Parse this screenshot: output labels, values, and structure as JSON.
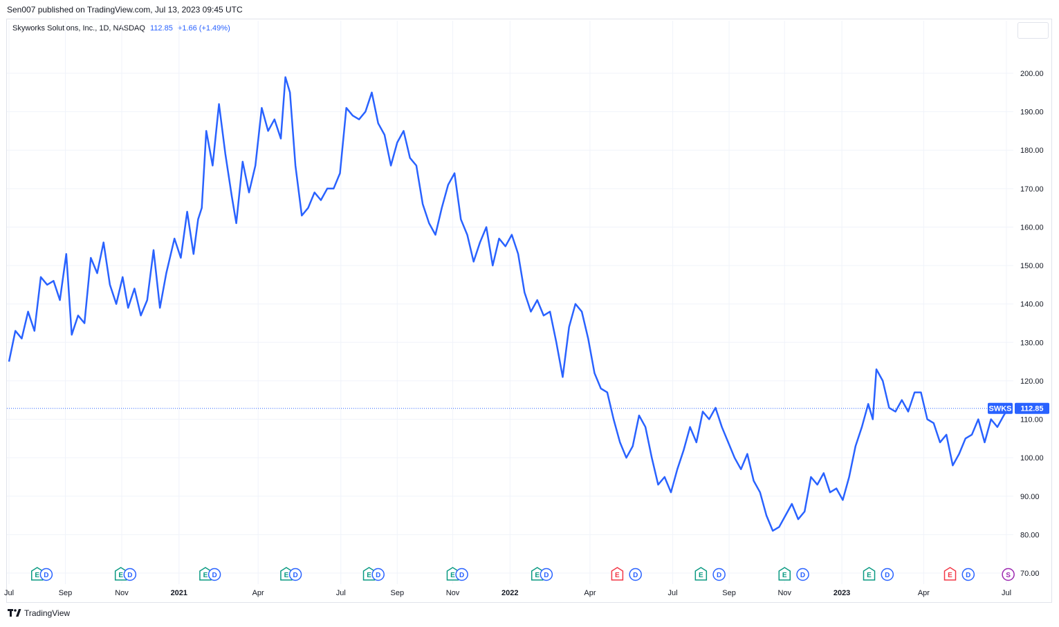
{
  "header": {
    "published": "Sen007 published on TradingView.com, Jul 13, 2023 09:45 UTC"
  },
  "legend": {
    "symbol": "Skyworks Solutions, Inc., 1D, NASDAQ",
    "price": "112.85",
    "change": "+1.66 (+1.49%)"
  },
  "footer": {
    "brand": "TradingView"
  },
  "colors": {
    "line": "#2962ff",
    "grid": "#f0f3fa",
    "earnings": "#089981",
    "earnings_neg": "#f23645",
    "dividend": "#2962ff",
    "split": "#9c27b0"
  },
  "chart_data": {
    "type": "line",
    "title": "Skyworks Solutions, Inc., 1D, NASDAQ",
    "xlabel": "",
    "ylabel": "",
    "ylim": [
      68,
      207
    ],
    "grid": true,
    "last_price": {
      "symbol": "SWKS",
      "value": 112.85,
      "label": "112.85"
    },
    "y_ticks": [
      70,
      80,
      90,
      100,
      110,
      120,
      130,
      140,
      150,
      160,
      170,
      180,
      190,
      200
    ],
    "y_tick_labels": [
      "70.00",
      "80.00",
      "90.00",
      "100.00",
      "110.00",
      "120.00",
      "130.00",
      "140.00",
      "150.00",
      "160.00",
      "170.00",
      "180.00",
      "190.00",
      "200.00"
    ],
    "x_ticks": [
      {
        "label": "Jul",
        "x": "2020-07-01",
        "bold": false
      },
      {
        "label": "Sep",
        "x": "2020-09-01",
        "bold": false
      },
      {
        "label": "Nov",
        "x": "2020-11-02",
        "bold": false
      },
      {
        "label": "2021",
        "x": "2021-01-04",
        "bold": true
      },
      {
        "label": "Apr",
        "x": "2021-04-01",
        "bold": false
      },
      {
        "label": "Jul",
        "x": "2021-07-01",
        "bold": false
      },
      {
        "label": "Sep",
        "x": "2021-09-01",
        "bold": false
      },
      {
        "label": "Nov",
        "x": "2021-11-01",
        "bold": false
      },
      {
        "label": "2022",
        "x": "2022-01-03",
        "bold": true
      },
      {
        "label": "Apr",
        "x": "2022-04-01",
        "bold": false
      },
      {
        "label": "Jul",
        "x": "2022-07-01",
        "bold": false
      },
      {
        "label": "Sep",
        "x": "2022-09-01",
        "bold": false
      },
      {
        "label": "Nov",
        "x": "2022-11-01",
        "bold": false
      },
      {
        "label": "2023",
        "x": "2023-01-03",
        "bold": true
      },
      {
        "label": "Apr",
        "x": "2023-04-03",
        "bold": false
      },
      {
        "label": "Jul",
        "x": "2023-07-03",
        "bold": false
      }
    ],
    "x_range": [
      "2020-07-01",
      "2023-07-03"
    ],
    "events": [
      {
        "kind": "E",
        "x": "2020-08-01",
        "label": "E",
        "negative": false
      },
      {
        "kind": "D",
        "x": "2020-08-11",
        "label": "D"
      },
      {
        "kind": "E",
        "x": "2020-11-01",
        "label": "E",
        "negative": false
      },
      {
        "kind": "D",
        "x": "2020-11-11",
        "label": "D"
      },
      {
        "kind": "E",
        "x": "2021-02-02",
        "label": "E",
        "negative": false
      },
      {
        "kind": "D",
        "x": "2021-02-12",
        "label": "D"
      },
      {
        "kind": "E",
        "x": "2021-05-02",
        "label": "E",
        "negative": false
      },
      {
        "kind": "D",
        "x": "2021-05-12",
        "label": "D"
      },
      {
        "kind": "E",
        "x": "2021-08-01",
        "label": "E",
        "negative": false
      },
      {
        "kind": "D",
        "x": "2021-08-11",
        "label": "D"
      },
      {
        "kind": "E",
        "x": "2021-11-01",
        "label": "E",
        "negative": false
      },
      {
        "kind": "D",
        "x": "2021-11-11",
        "label": "D"
      },
      {
        "kind": "E",
        "x": "2022-02-02",
        "label": "E",
        "negative": false
      },
      {
        "kind": "D",
        "x": "2022-02-12",
        "label": "D"
      },
      {
        "kind": "E",
        "x": "2022-05-01",
        "label": "E",
        "negative": true
      },
      {
        "kind": "D",
        "x": "2022-05-21",
        "label": "D"
      },
      {
        "kind": "E",
        "x": "2022-08-01",
        "label": "E",
        "negative": false
      },
      {
        "kind": "D",
        "x": "2022-08-21",
        "label": "D"
      },
      {
        "kind": "E",
        "x": "2022-11-01",
        "label": "E",
        "negative": false
      },
      {
        "kind": "D",
        "x": "2022-11-21",
        "label": "D"
      },
      {
        "kind": "E",
        "x": "2023-02-02",
        "label": "E",
        "negative": false
      },
      {
        "kind": "D",
        "x": "2023-02-22",
        "label": "D"
      },
      {
        "kind": "E",
        "x": "2023-05-02",
        "label": "E",
        "negative": true
      },
      {
        "kind": "D",
        "x": "2023-05-22",
        "label": "D"
      },
      {
        "kind": "S",
        "x": "2023-07-05",
        "label": "S"
      }
    ],
    "series": [
      {
        "points": [
          [
            "2020-07-01",
            125
          ],
          [
            "2020-07-08",
            133
          ],
          [
            "2020-07-15",
            131
          ],
          [
            "2020-07-22",
            138
          ],
          [
            "2020-07-29",
            133
          ],
          [
            "2020-08-05",
            147
          ],
          [
            "2020-08-12",
            145
          ],
          [
            "2020-08-19",
            146
          ],
          [
            "2020-08-26",
            141
          ],
          [
            "2020-09-02",
            153
          ],
          [
            "2020-09-08",
            132
          ],
          [
            "2020-09-15",
            137
          ],
          [
            "2020-09-22",
            135
          ],
          [
            "2020-09-29",
            152
          ],
          [
            "2020-10-06",
            148
          ],
          [
            "2020-10-13",
            156
          ],
          [
            "2020-10-20",
            145
          ],
          [
            "2020-10-27",
            140
          ],
          [
            "2020-11-03",
            147
          ],
          [
            "2020-11-09",
            139
          ],
          [
            "2020-11-16",
            144
          ],
          [
            "2020-11-23",
            137
          ],
          [
            "2020-11-30",
            141
          ],
          [
            "2020-12-07",
            154
          ],
          [
            "2020-12-14",
            139
          ],
          [
            "2020-12-21",
            148
          ],
          [
            "2020-12-30",
            157
          ],
          [
            "2021-01-06",
            152
          ],
          [
            "2021-01-13",
            164
          ],
          [
            "2021-01-20",
            153
          ],
          [
            "2021-01-25",
            162
          ],
          [
            "2021-01-29",
            165
          ],
          [
            "2021-02-03",
            185
          ],
          [
            "2021-02-10",
            176
          ],
          [
            "2021-02-17",
            192
          ],
          [
            "2021-02-24",
            179
          ],
          [
            "2021-03-03",
            168
          ],
          [
            "2021-03-08",
            161
          ],
          [
            "2021-03-15",
            177
          ],
          [
            "2021-03-22",
            169
          ],
          [
            "2021-03-29",
            176
          ],
          [
            "2021-04-05",
            191
          ],
          [
            "2021-04-12",
            185
          ],
          [
            "2021-04-19",
            188
          ],
          [
            "2021-04-26",
            183
          ],
          [
            "2021-05-01",
            199
          ],
          [
            "2021-05-06",
            195
          ],
          [
            "2021-05-12",
            176
          ],
          [
            "2021-05-19",
            163
          ],
          [
            "2021-05-26",
            165
          ],
          [
            "2021-06-02",
            169
          ],
          [
            "2021-06-09",
            167
          ],
          [
            "2021-06-16",
            170
          ],
          [
            "2021-06-23",
            170
          ],
          [
            "2021-06-30",
            174
          ],
          [
            "2021-07-07",
            191
          ],
          [
            "2021-07-14",
            189
          ],
          [
            "2021-07-21",
            188
          ],
          [
            "2021-07-28",
            190
          ],
          [
            "2021-08-04",
            195
          ],
          [
            "2021-08-11",
            187
          ],
          [
            "2021-08-18",
            184
          ],
          [
            "2021-08-25",
            176
          ],
          [
            "2021-09-01",
            182
          ],
          [
            "2021-09-08",
            185
          ],
          [
            "2021-09-15",
            178
          ],
          [
            "2021-09-22",
            176
          ],
          [
            "2021-09-29",
            166
          ],
          [
            "2021-10-06",
            161
          ],
          [
            "2021-10-13",
            158
          ],
          [
            "2021-10-20",
            165
          ],
          [
            "2021-10-27",
            171
          ],
          [
            "2021-11-03",
            174
          ],
          [
            "2021-11-10",
            162
          ],
          [
            "2021-11-17",
            158
          ],
          [
            "2021-11-24",
            151
          ],
          [
            "2021-12-01",
            156
          ],
          [
            "2021-12-08",
            160
          ],
          [
            "2021-12-15",
            150
          ],
          [
            "2021-12-22",
            157
          ],
          [
            "2021-12-29",
            155
          ],
          [
            "2022-01-05",
            158
          ],
          [
            "2022-01-12",
            153
          ],
          [
            "2022-01-19",
            143
          ],
          [
            "2022-01-26",
            138
          ],
          [
            "2022-02-02",
            141
          ],
          [
            "2022-02-09",
            137
          ],
          [
            "2022-02-16",
            138
          ],
          [
            "2022-02-23",
            130
          ],
          [
            "2022-03-02",
            121
          ],
          [
            "2022-03-09",
            134
          ],
          [
            "2022-03-16",
            140
          ],
          [
            "2022-03-23",
            138
          ],
          [
            "2022-03-30",
            131
          ],
          [
            "2022-04-06",
            122
          ],
          [
            "2022-04-13",
            118
          ],
          [
            "2022-04-20",
            117
          ],
          [
            "2022-04-27",
            110
          ],
          [
            "2022-05-04",
            104
          ],
          [
            "2022-05-11",
            100
          ],
          [
            "2022-05-18",
            103
          ],
          [
            "2022-05-25",
            111
          ],
          [
            "2022-06-01",
            108
          ],
          [
            "2022-06-08",
            100
          ],
          [
            "2022-06-15",
            93
          ],
          [
            "2022-06-22",
            95
          ],
          [
            "2022-06-29",
            91
          ],
          [
            "2022-07-06",
            97
          ],
          [
            "2022-07-13",
            102
          ],
          [
            "2022-07-20",
            108
          ],
          [
            "2022-07-27",
            104
          ],
          [
            "2022-08-03",
            112
          ],
          [
            "2022-08-10",
            110
          ],
          [
            "2022-08-17",
            113
          ],
          [
            "2022-08-24",
            108
          ],
          [
            "2022-08-31",
            104
          ],
          [
            "2022-09-07",
            100
          ],
          [
            "2022-09-14",
            97
          ],
          [
            "2022-09-21",
            101
          ],
          [
            "2022-09-28",
            94
          ],
          [
            "2022-10-05",
            91
          ],
          [
            "2022-10-12",
            85
          ],
          [
            "2022-10-19",
            81
          ],
          [
            "2022-10-26",
            82
          ],
          [
            "2022-11-02",
            85
          ],
          [
            "2022-11-09",
            88
          ],
          [
            "2022-11-16",
            84
          ],
          [
            "2022-11-23",
            86
          ],
          [
            "2022-11-30",
            95
          ],
          [
            "2022-12-07",
            93
          ],
          [
            "2022-12-14",
            96
          ],
          [
            "2022-12-21",
            91
          ],
          [
            "2022-12-28",
            92
          ],
          [
            "2023-01-04",
            89
          ],
          [
            "2023-01-11",
            95
          ],
          [
            "2023-01-18",
            103
          ],
          [
            "2023-01-25",
            108
          ],
          [
            "2023-02-01",
            114
          ],
          [
            "2023-02-06",
            110
          ],
          [
            "2023-02-10",
            123
          ],
          [
            "2023-02-17",
            120
          ],
          [
            "2023-02-24",
            113
          ],
          [
            "2023-03-03",
            112
          ],
          [
            "2023-03-10",
            115
          ],
          [
            "2023-03-17",
            112
          ],
          [
            "2023-03-24",
            117
          ],
          [
            "2023-03-31",
            117
          ],
          [
            "2023-04-07",
            110
          ],
          [
            "2023-04-14",
            109
          ],
          [
            "2023-04-21",
            104
          ],
          [
            "2023-04-28",
            106
          ],
          [
            "2023-05-05",
            98
          ],
          [
            "2023-05-12",
            101
          ],
          [
            "2023-05-19",
            105
          ],
          [
            "2023-05-26",
            106
          ],
          [
            "2023-06-02",
            110
          ],
          [
            "2023-06-09",
            104
          ],
          [
            "2023-06-16",
            110
          ],
          [
            "2023-06-23",
            108
          ],
          [
            "2023-06-30",
            111
          ],
          [
            "2023-07-05",
            112.85
          ]
        ]
      }
    ]
  }
}
